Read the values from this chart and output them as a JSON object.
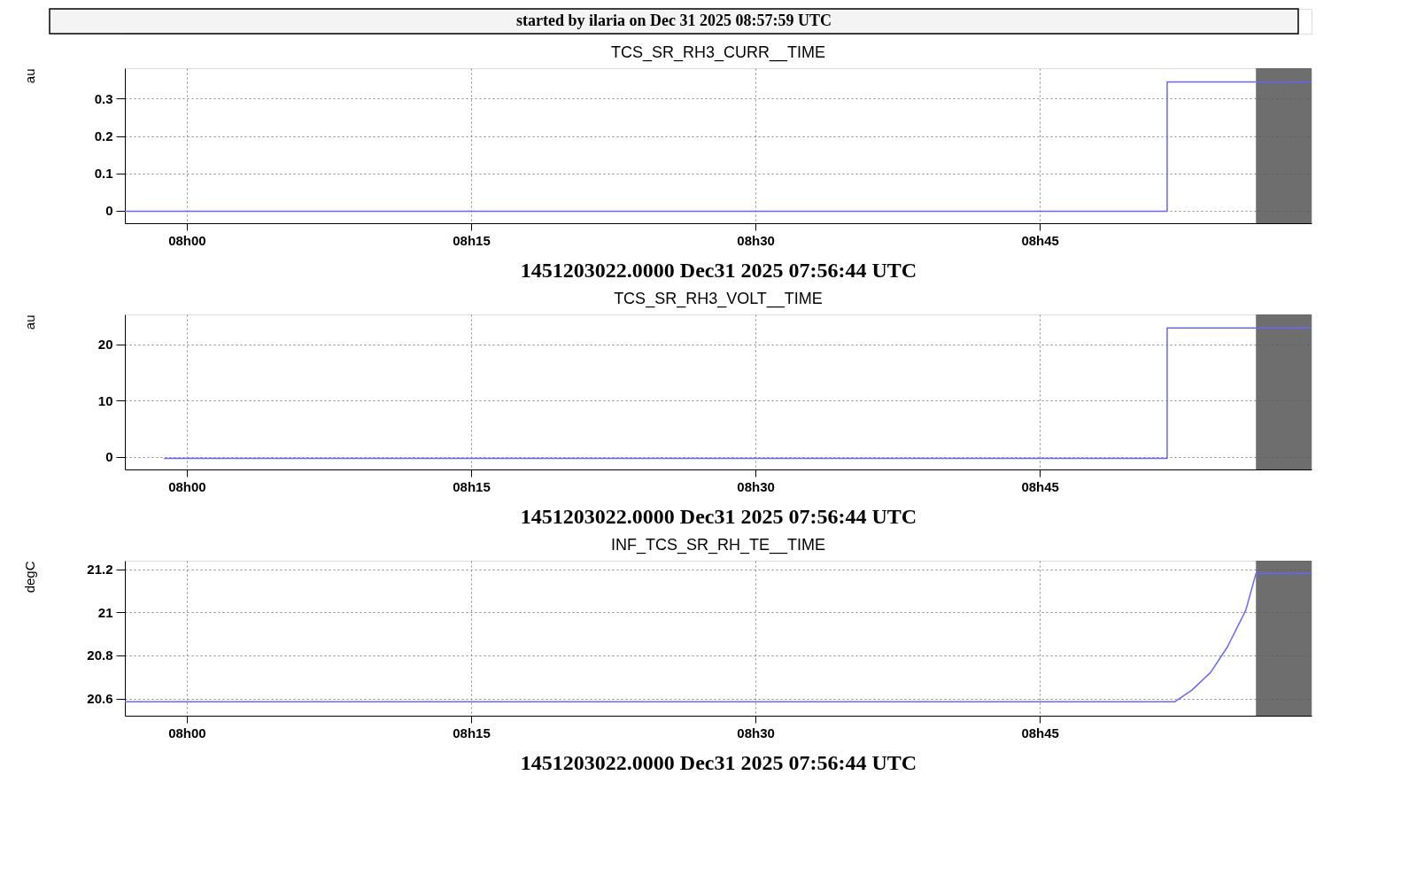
{
  "chart_data": [
    {
      "type": "step",
      "title": "TCS_SR_RH3_CURR__TIME",
      "xlabel": "1451203022.0000 Dec31 2025 07:56:44 UTC",
      "ylabel": "au",
      "annotations": [
        "started by ilaria on Dec 31 2025 08:57:59 UTC"
      ],
      "series": [
        {
          "color": "#6666ff",
          "x": [
            "2025-12-31T07:56:44",
            "2025-12-31T08:51:43",
            "2025-12-31T08:59:20"
          ],
          "values": [
            -0.002,
            0.345,
            0.345
          ]
        }
      ],
      "xlim": [
        "2025-12-31T07:56:44",
        "2025-12-31T08:59:20"
      ],
      "xticks": [
        {
          "value": "2025-12-31T08:00",
          "label": "08h00"
        },
        {
          "value": "2025-12-31T08:15",
          "label": "08h15"
        },
        {
          "value": "2025-12-31T08:30",
          "label": "08h30"
        },
        {
          "value": "2025-12-31T08:45",
          "label": "08h45"
        }
      ],
      "ylim": [
        -0.034,
        0.382
      ],
      "yticks": [
        0,
        0.1,
        0.2,
        0.3
      ],
      "bands": [
        {
          "axis": "x",
          "from": "2025-12-31T08:56:24",
          "to": "2025-12-31T08:59:20",
          "color": "#555555"
        }
      ],
      "grid": true,
      "line_style": "solid",
      "marker": "none"
    },
    {
      "type": "step",
      "title": "TCS_SR_RH3_VOLT__TIME",
      "xlabel": "1451203022.0000 Dec31 2025 07:56:44 UTC",
      "ylabel": "au",
      "series": [
        {
          "color": "#6666ff",
          "x": [
            "2025-12-31T07:58:48",
            "2025-12-31T08:51:43",
            "2025-12-31T08:59:20"
          ],
          "values": [
            -0.3,
            22.9,
            22.9
          ]
        }
      ],
      "xlim": [
        "2025-12-31T07:56:44",
        "2025-12-31T08:59:20"
      ],
      "xticks": [
        {
          "value": "2025-12-31T08:00",
          "label": "08h00"
        },
        {
          "value": "2025-12-31T08:15",
          "label": "08h15"
        },
        {
          "value": "2025-12-31T08:30",
          "label": "08h30"
        },
        {
          "value": "2025-12-31T08:45",
          "label": "08h45"
        }
      ],
      "ylim": [
        -2.26,
        25.3
      ],
      "yticks": [
        0,
        10,
        20
      ],
      "bands": [
        {
          "axis": "x",
          "from": "2025-12-31T08:56:24",
          "to": "2025-12-31T08:59:20",
          "color": "#555555"
        }
      ],
      "grid": true,
      "line_style": "solid",
      "marker": "none"
    },
    {
      "type": "line",
      "title": "INF_TCS_SR_RH_TE__TIME",
      "xlabel": "1451203022.0000 Dec31 2025 07:56:44 UTC",
      "ylabel": "degC",
      "series": [
        {
          "color": "#6666ff",
          "x": [
            "2025-12-31T07:56:44",
            "2025-12-31T08:52:08",
            "2025-12-31T08:53:02",
            "2025-12-31T08:54:00",
            "2025-12-31T08:54:54",
            "2025-12-31T08:55:52",
            "2025-12-31T08:56:24",
            "2025-12-31T08:59:20"
          ],
          "values": [
            20.585,
            20.585,
            20.64,
            20.72,
            20.84,
            21.01,
            21.18,
            21.18
          ]
        }
      ],
      "xlim": [
        "2025-12-31T07:56:44",
        "2025-12-31T08:59:20"
      ],
      "xticks": [
        {
          "value": "2025-12-31T08:00",
          "label": "08h00"
        },
        {
          "value": "2025-12-31T08:15",
          "label": "08h15"
        },
        {
          "value": "2025-12-31T08:30",
          "label": "08h30"
        },
        {
          "value": "2025-12-31T08:45",
          "label": "08h45"
        }
      ],
      "ylim": [
        20.52,
        21.24
      ],
      "yticks": [
        20.6,
        20.8,
        21,
        21.2
      ],
      "bands": [
        {
          "axis": "x",
          "from": "2025-12-31T08:56:24",
          "to": "2025-12-31T08:59:20",
          "color": "#555555"
        }
      ],
      "grid": true,
      "line_style": "solid",
      "marker": "none"
    }
  ]
}
